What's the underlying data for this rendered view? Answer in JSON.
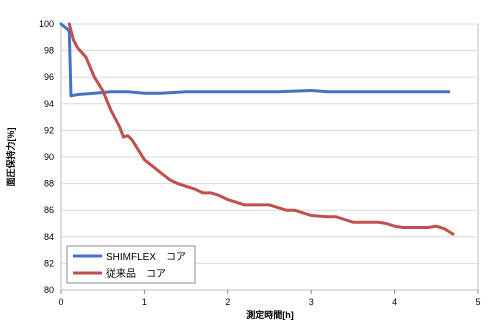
{
  "chart_data": {
    "type": "line",
    "xlabel": "測定時間[h]",
    "ylabel": "面圧保持力[%]",
    "xlim": [
      0,
      5
    ],
    "ylim": [
      80,
      100
    ],
    "x_ticks": [
      "0",
      "1",
      "2",
      "3",
      "4",
      "5"
    ],
    "y_ticks": [
      "80",
      "82",
      "84",
      "86",
      "88",
      "90",
      "92",
      "94",
      "96",
      "98",
      "100"
    ],
    "grid": "horizontal",
    "legend_position": "bottom-left",
    "series": [
      {
        "name": "SHIMFLEX　コア",
        "color": "#4472C4",
        "points": [
          [
            0,
            100
          ],
          [
            0.08,
            99.6
          ],
          [
            0.1,
            99.4
          ],
          [
            0.12,
            94.6
          ],
          [
            0.2,
            94.7
          ],
          [
            0.4,
            94.8
          ],
          [
            0.6,
            94.9
          ],
          [
            0.8,
            94.9
          ],
          [
            1.0,
            94.8
          ],
          [
            1.2,
            94.8
          ],
          [
            1.5,
            94.9
          ],
          [
            1.8,
            94.9
          ],
          [
            2.0,
            94.9
          ],
          [
            2.3,
            94.9
          ],
          [
            2.6,
            94.9
          ],
          [
            3.0,
            95.0
          ],
          [
            3.2,
            94.9
          ],
          [
            3.5,
            94.9
          ],
          [
            3.8,
            94.9
          ],
          [
            4.0,
            94.9
          ],
          [
            4.3,
            94.9
          ],
          [
            4.65,
            94.9
          ]
        ]
      },
      {
        "name": "従来品　コア",
        "color": "#C0504D",
        "points": [
          [
            0.1,
            100
          ],
          [
            0.12,
            99.5
          ],
          [
            0.15,
            98.8
          ],
          [
            0.2,
            98.2
          ],
          [
            0.3,
            97.5
          ],
          [
            0.4,
            96.0
          ],
          [
            0.5,
            95.0
          ],
          [
            0.6,
            93.5
          ],
          [
            0.7,
            92.3
          ],
          [
            0.75,
            91.5
          ],
          [
            0.8,
            91.6
          ],
          [
            0.85,
            91.3
          ],
          [
            0.9,
            90.8
          ],
          [
            1.0,
            89.8
          ],
          [
            1.1,
            89.3
          ],
          [
            1.2,
            88.8
          ],
          [
            1.3,
            88.3
          ],
          [
            1.4,
            88.0
          ],
          [
            1.5,
            87.8
          ],
          [
            1.6,
            87.6
          ],
          [
            1.7,
            87.3
          ],
          [
            1.8,
            87.3
          ],
          [
            1.9,
            87.1
          ],
          [
            2.0,
            86.8
          ],
          [
            2.1,
            86.6
          ],
          [
            2.2,
            86.4
          ],
          [
            2.3,
            86.4
          ],
          [
            2.5,
            86.4
          ],
          [
            2.7,
            86.0
          ],
          [
            2.8,
            86.0
          ],
          [
            3.0,
            85.6
          ],
          [
            3.2,
            85.5
          ],
          [
            3.3,
            85.5
          ],
          [
            3.4,
            85.3
          ],
          [
            3.5,
            85.1
          ],
          [
            3.6,
            85.1
          ],
          [
            3.8,
            85.1
          ],
          [
            3.9,
            85.0
          ],
          [
            4.0,
            84.8
          ],
          [
            4.1,
            84.7
          ],
          [
            4.2,
            84.7
          ],
          [
            4.4,
            84.7
          ],
          [
            4.5,
            84.8
          ],
          [
            4.6,
            84.6
          ],
          [
            4.7,
            84.2
          ]
        ]
      }
    ]
  }
}
